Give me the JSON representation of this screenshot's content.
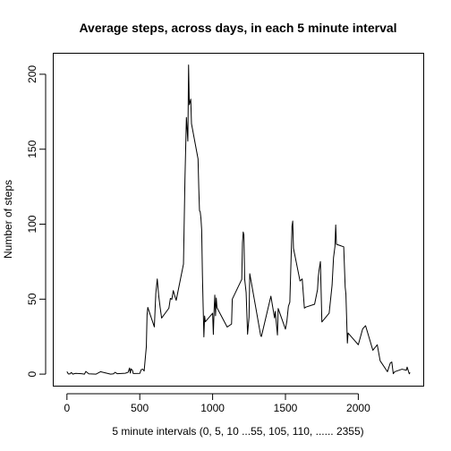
{
  "chart_data": {
    "type": "line",
    "title": "Average steps, across days, in each 5 minute interval",
    "xlabel": "5 minute intervals (0, 5, 10 ...55, 105, 110, ...... 2355)",
    "ylabel": "Number of steps",
    "xlim": [
      -94,
      2449
    ],
    "ylim": [
      -8,
      214
    ],
    "xticks": [
      0,
      500,
      1000,
      1500,
      2000
    ],
    "yticks": [
      0,
      50,
      100,
      150,
      200
    ],
    "grid": false,
    "series": [
      {
        "values": [
          [
            0,
            1.7
          ],
          [
            10,
            0.1
          ],
          [
            20,
            0.1
          ],
          [
            30,
            1.1
          ],
          [
            40,
            0
          ],
          [
            50,
            0.3
          ],
          [
            60,
            0.5
          ],
          [
            100,
            0.3
          ],
          [
            120,
            0
          ],
          [
            130,
            1.8
          ],
          [
            150,
            0.2
          ],
          [
            200,
            0
          ],
          [
            230,
            1.6
          ],
          [
            300,
            0
          ],
          [
            320,
            0.2
          ],
          [
            330,
            1.2
          ],
          [
            345,
            0.3
          ],
          [
            400,
            0.6
          ],
          [
            420,
            1.2
          ],
          [
            430,
            4.1
          ],
          [
            435,
            0.7
          ],
          [
            440,
            3.5
          ],
          [
            450,
            2.5
          ],
          [
            455,
            0.4
          ],
          [
            500,
            0.5
          ],
          [
            510,
            3.0
          ],
          [
            520,
            3.3
          ],
          [
            530,
            2.1
          ],
          [
            545,
            18.3
          ],
          [
            550,
            39.5
          ],
          [
            555,
            44.5
          ],
          [
            600,
            31.5
          ],
          [
            610,
            53.8
          ],
          [
            620,
            63.5
          ],
          [
            630,
            52.2
          ],
          [
            640,
            44.3
          ],
          [
            650,
            37.4
          ],
          [
            700,
            44.0
          ],
          [
            710,
            50.5
          ],
          [
            720,
            49.9
          ],
          [
            730,
            55.7
          ],
          [
            740,
            52.3
          ],
          [
            750,
            49.2
          ],
          [
            800,
            73.4
          ],
          [
            810,
            129.4
          ],
          [
            820,
            171.2
          ],
          [
            830,
            155.4
          ],
          [
            835,
            206.2
          ],
          [
            840,
            179.6
          ],
          [
            850,
            183.4
          ],
          [
            855,
            167.0
          ],
          [
            900,
            143.5
          ],
          [
            905,
            124.0
          ],
          [
            910,
            109.1
          ],
          [
            915,
            108.1
          ],
          [
            920,
            103.7
          ],
          [
            925,
            95.9
          ],
          [
            930,
            66.2
          ],
          [
            935,
            45.2
          ],
          [
            940,
            24.8
          ],
          [
            945,
            38.8
          ],
          [
            950,
            34.9
          ],
          [
            1000,
            40.6
          ],
          [
            1005,
            26.5
          ],
          [
            1010,
            42.4
          ],
          [
            1015,
            52.7
          ],
          [
            1020,
            38.9
          ],
          [
            1025,
            50.8
          ],
          [
            1030,
            44.3
          ],
          [
            1100,
            31.4
          ],
          [
            1130,
            33.4
          ],
          [
            1135,
            50.0
          ],
          [
            1200,
            63.2
          ],
          [
            1205,
            87.6
          ],
          [
            1210,
            94.8
          ],
          [
            1215,
            92.8
          ],
          [
            1220,
            63.4
          ],
          [
            1230,
            54.5
          ],
          [
            1240,
            26.6
          ],
          [
            1245,
            32.4
          ],
          [
            1250,
            37.9
          ],
          [
            1255,
            67.0
          ],
          [
            1300,
            42.3
          ],
          [
            1330,
            25.6
          ],
          [
            1335,
            25.1
          ],
          [
            1400,
            52.0
          ],
          [
            1425,
            37.5
          ],
          [
            1430,
            41.8
          ],
          [
            1445,
            26.1
          ],
          [
            1450,
            43.8
          ],
          [
            1500,
            30.0
          ],
          [
            1510,
            35.5
          ],
          [
            1520,
            45.1
          ],
          [
            1530,
            48.0
          ],
          [
            1545,
            98.7
          ],
          [
            1550,
            102.1
          ],
          [
            1555,
            83.9
          ],
          [
            1600,
            62.1
          ],
          [
            1615,
            63.5
          ],
          [
            1630,
            44.0
          ],
          [
            1640,
            44.7
          ],
          [
            1700,
            46.6
          ],
          [
            1720,
            56.3
          ],
          [
            1725,
            64.5
          ],
          [
            1730,
            68.9
          ],
          [
            1740,
            75.1
          ],
          [
            1750,
            34.8
          ],
          [
            1800,
            40.7
          ],
          [
            1820,
            59.3
          ],
          [
            1830,
            77.7
          ],
          [
            1840,
            85.3
          ],
          [
            1845,
            99.5
          ],
          [
            1850,
            86.6
          ],
          [
            1900,
            84.9
          ],
          [
            1910,
            58.0
          ],
          [
            1915,
            53.4
          ],
          [
            1925,
            20.7
          ],
          [
            1930,
            27.4
          ],
          [
            2000,
            19.6
          ],
          [
            2030,
            30.2
          ],
          [
            2050,
            32.3
          ],
          [
            2100,
            15.9
          ],
          [
            2130,
            19.6
          ],
          [
            2150,
            8.9
          ],
          [
            2200,
            1.6
          ],
          [
            2220,
            7.5
          ],
          [
            2230,
            8.1
          ],
          [
            2240,
            0.3
          ],
          [
            2250,
            1.6
          ],
          [
            2300,
            3.3
          ],
          [
            2330,
            2.6
          ],
          [
            2335,
            4.7
          ],
          [
            2340,
            3.3
          ],
          [
            2350,
            0.2
          ],
          [
            2355,
            1.1
          ]
        ]
      }
    ]
  }
}
